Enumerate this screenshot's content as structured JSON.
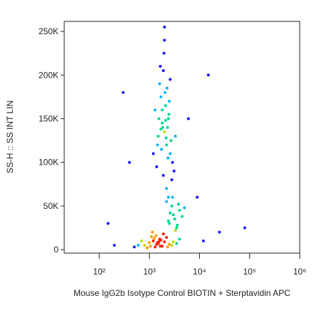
{
  "chart_data": {
    "type": "scatter",
    "x_label": "Mouse IgG2b Isotype Control BIOTIN  + Sterptavidin APC",
    "y_label": "SS-H :: SS INT LIN",
    "x_scale": "log",
    "xlim": [
      20,
      1000000
    ],
    "ylim": [
      -4000,
      261500
    ],
    "xticks": [
      {
        "value": 100,
        "label": "10²"
      },
      {
        "value": 1000,
        "label": "10³"
      },
      {
        "value": 10000,
        "label": "10⁴"
      },
      {
        "value": 100000,
        "label": "10⁵"
      },
      {
        "value": 1000000,
        "label": "10⁶"
      }
    ],
    "yticks": [
      {
        "value": 0,
        "label": "0"
      },
      {
        "value": 50000,
        "label": "50K"
      },
      {
        "value": 100000,
        "label": "100K"
      },
      {
        "value": 150000,
        "label": "150K"
      },
      {
        "value": 200000,
        "label": "200K"
      },
      {
        "value": 250000,
        "label": "250K"
      }
    ],
    "density_colors": [
      "#1a1aff",
      "#00b4ff",
      "#00d890",
      "#b8e000",
      "#ff9a00",
      "#ff2000"
    ],
    "x": [
      1500,
      1800,
      2200,
      2600,
      1300,
      1700,
      2000,
      2400,
      2900,
      1600,
      1900,
      2100,
      2300,
      2700,
      1400,
      1750,
      2050,
      2500,
      3100,
      1550,
      1850,
      2150,
      2450,
      1650,
      1950,
      2250,
      2800,
      1450,
      2350,
      2000,
      1800,
      2600,
      2200,
      1700,
      2100,
      3300,
      1200,
      2400,
      1900,
      2000,
      800,
      1000,
      1200,
      1400,
      1600,
      1800,
      2000,
      1100,
      1300,
      1500,
      1700,
      900,
      2200,
      2500,
      3000,
      600,
      1250,
      1450,
      1650,
      1900,
      2300,
      700,
      3500,
      4000,
      1350,
      1550,
      1050,
      1150,
      2800,
      500,
      2500,
      3000,
      3500,
      2800,
      3200,
      4000,
      2200,
      3600,
      2900,
      4500,
      2600,
      3300,
      3800,
      2400,
      5000,
      150,
      300,
      12000,
      25000,
      6000,
      80000,
      400,
      9000,
      200,
      15000
    ],
    "y": [
      130000,
      145000,
      120000,
      110000,
      160000,
      175000,
      135000,
      150000,
      100000,
      190000,
      205000,
      165000,
      140000,
      125000,
      95000,
      115000,
      180000,
      170000,
      90000,
      150000,
      140000,
      128000,
      155000,
      210000,
      225000,
      185000,
      80000,
      120000,
      105000,
      240000,
      160000,
      195000,
      70000,
      138000,
      148000,
      130000,
      110000,
      60000,
      85000,
      255000,
      5000,
      8000,
      10000,
      6000,
      12000,
      4000,
      9000,
      15000,
      3000,
      7000,
      11000,
      2000,
      14000,
      6000,
      9000,
      5000,
      13000,
      8000,
      4000,
      18000,
      3000,
      10000,
      7000,
      12000,
      16000,
      9000,
      4000,
      20000,
      5000,
      3000,
      30000,
      40000,
      25000,
      50000,
      35000,
      45000,
      55000,
      28000,
      60000,
      38000,
      42000,
      22000,
      52000,
      33000,
      48000,
      30000,
      180000,
      10000,
      20000,
      150000,
      25000,
      100000,
      60000,
      5000,
      200000
    ]
  }
}
